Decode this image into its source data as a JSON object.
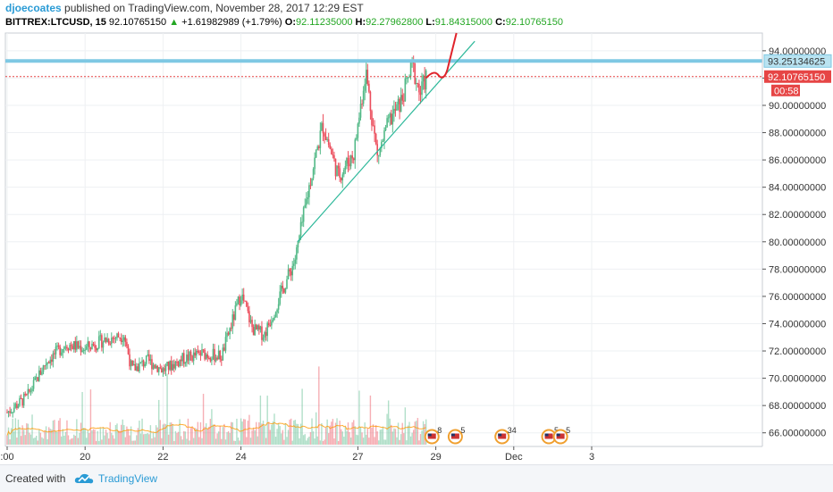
{
  "header": {
    "author": "djoecoates",
    "published": " published on TradingView.com, November 28, 2017 12:29 EST",
    "symbol": "BITTREX:LTCUSD, 15",
    "last": "92.10765150",
    "change_arrow": "▲",
    "change": "+1.61982989 (+1.79%)",
    "o_label": "O:",
    "o_value": "92.11235000",
    "h_label": "H:",
    "h_value": "92.27962800",
    "l_label": "L:",
    "l_value": "91.84315000",
    "c_label": "C:",
    "c_value": "92.10765150"
  },
  "footer": {
    "created_with": "Created with",
    "brand": "TradingView"
  },
  "colors": {
    "up": "#53b987",
    "down": "#eb4d5c",
    "horizontal_line": "#7ec8e3",
    "price_line": "#e64545",
    "trend_line": "#2db89a",
    "drawing": "#e0232b",
    "grid": "#eef0f3",
    "volume_ma": "#ff9800"
  },
  "chart_data": {
    "type": "candlestick",
    "symbol": "BITTREX:LTCUSD",
    "interval": "15",
    "x_ticks": [
      ":00",
      "20",
      "22",
      "24",
      "27",
      "29",
      "Dec",
      "3"
    ],
    "x_tick_days": [
      18,
      20,
      22,
      24,
      27,
      29,
      31,
      33
    ],
    "y_ticks": [
      "94.00000000",
      "92.00000000",
      "90.00000000",
      "88.00000000",
      "86.00000000",
      "84.00000000",
      "82.00000000",
      "80.00000000",
      "78.00000000",
      "76.00000000",
      "74.00000000",
      "72.00000000",
      "70.00000000",
      "68.00000000",
      "66.00000000"
    ],
    "y_tick_values": [
      94,
      92,
      90,
      88,
      86,
      84,
      82,
      80,
      78,
      76,
      74,
      72,
      70,
      68,
      66
    ],
    "ylim": [
      65,
      95.3
    ],
    "price_path": [
      {
        "day": 18.0,
        "price": 67.5
      },
      {
        "day": 18.5,
        "price": 68.6
      },
      {
        "day": 19.0,
        "price": 71.2
      },
      {
        "day": 19.5,
        "price": 72.5
      },
      {
        "day": 20.0,
        "price": 72.2
      },
      {
        "day": 20.5,
        "price": 72.8
      },
      {
        "day": 21.0,
        "price": 73.2
      },
      {
        "day": 21.2,
        "price": 70.6
      },
      {
        "day": 21.6,
        "price": 71.3
      },
      {
        "day": 22.0,
        "price": 70.6
      },
      {
        "day": 22.5,
        "price": 71.4
      },
      {
        "day": 23.0,
        "price": 71.8
      },
      {
        "day": 23.5,
        "price": 71.6
      },
      {
        "day": 24.0,
        "price": 76.2
      },
      {
        "day": 24.3,
        "price": 73.6
      },
      {
        "day": 24.6,
        "price": 73.2
      },
      {
        "day": 25.0,
        "price": 76.0
      },
      {
        "day": 25.4,
        "price": 78.8
      },
      {
        "day": 25.8,
        "price": 84.8
      },
      {
        "day": 26.1,
        "price": 88.6
      },
      {
        "day": 26.5,
        "price": 84.8
      },
      {
        "day": 26.9,
        "price": 86.5
      },
      {
        "day": 27.2,
        "price": 92.6
      },
      {
        "day": 27.5,
        "price": 86.2
      },
      {
        "day": 27.8,
        "price": 88.8
      },
      {
        "day": 28.1,
        "price": 90.2
      },
      {
        "day": 28.4,
        "price": 92.9
      },
      {
        "day": 28.6,
        "price": 90.8
      },
      {
        "day": 28.75,
        "price": 92.1
      }
    ],
    "horizontal_line": 93.25134625,
    "horizontal_line_label": "93.25134625",
    "last_price": 92.1076515,
    "last_price_label": "92.10765150",
    "countdown_label": "00:58",
    "trend_line": [
      {
        "day": 25.45,
        "price": 80.0
      },
      {
        "day": 30.0,
        "price": 94.7
      }
    ],
    "events": [
      {
        "day": 28.9,
        "count": "8"
      },
      {
        "day": 29.5,
        "count": "5"
      },
      {
        "day": 30.7,
        "count": "34"
      },
      {
        "day": 31.9,
        "count": "5"
      },
      {
        "day": 32.2,
        "count": "5"
      }
    ]
  }
}
